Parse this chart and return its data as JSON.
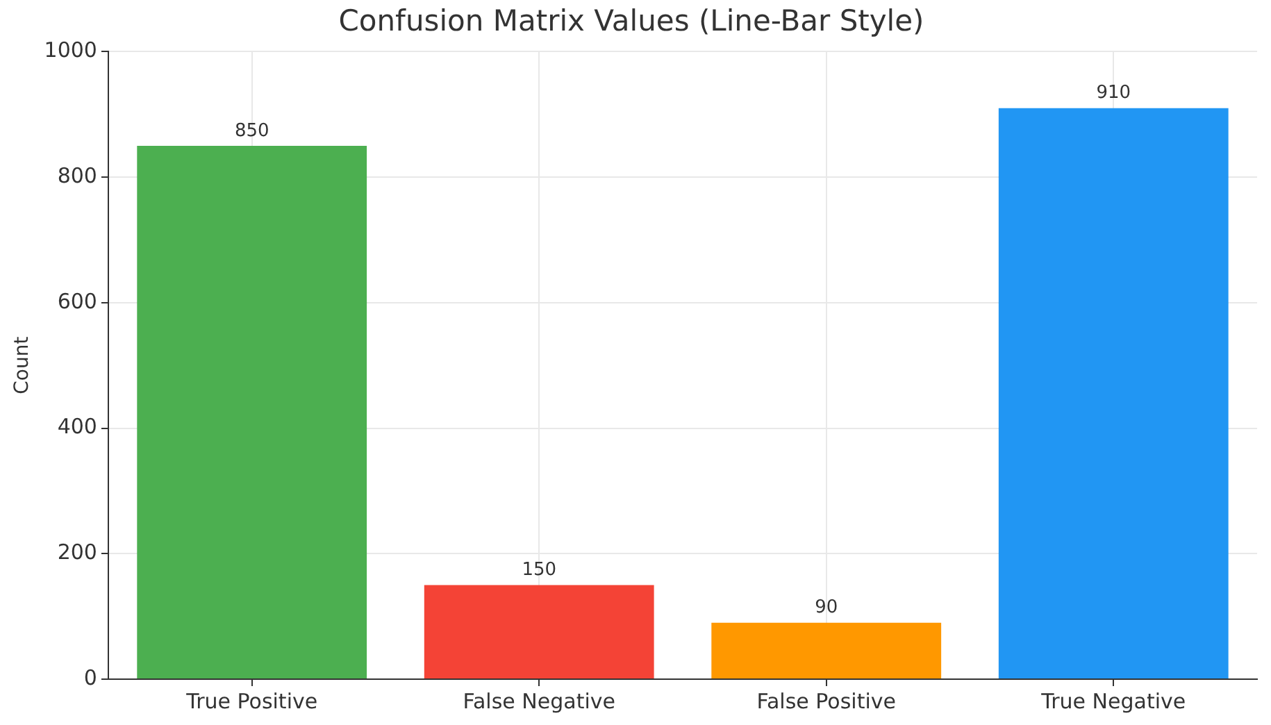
{
  "chart_data": {
    "type": "bar",
    "title": "Confusion Matrix Values (Line-Bar Style)",
    "ylabel": "Count",
    "categories": [
      "True Positive",
      "False Negative",
      "False Positive",
      "True Negative"
    ],
    "values": [
      850,
      150,
      90,
      910
    ],
    "colors": [
      "#4caf50",
      "#f44336",
      "#ff9800",
      "#2196f3"
    ],
    "ylim": [
      0,
      1000
    ],
    "yticks": [
      0,
      200,
      400,
      600,
      800,
      1000
    ],
    "grid": true,
    "data_labels": true
  }
}
